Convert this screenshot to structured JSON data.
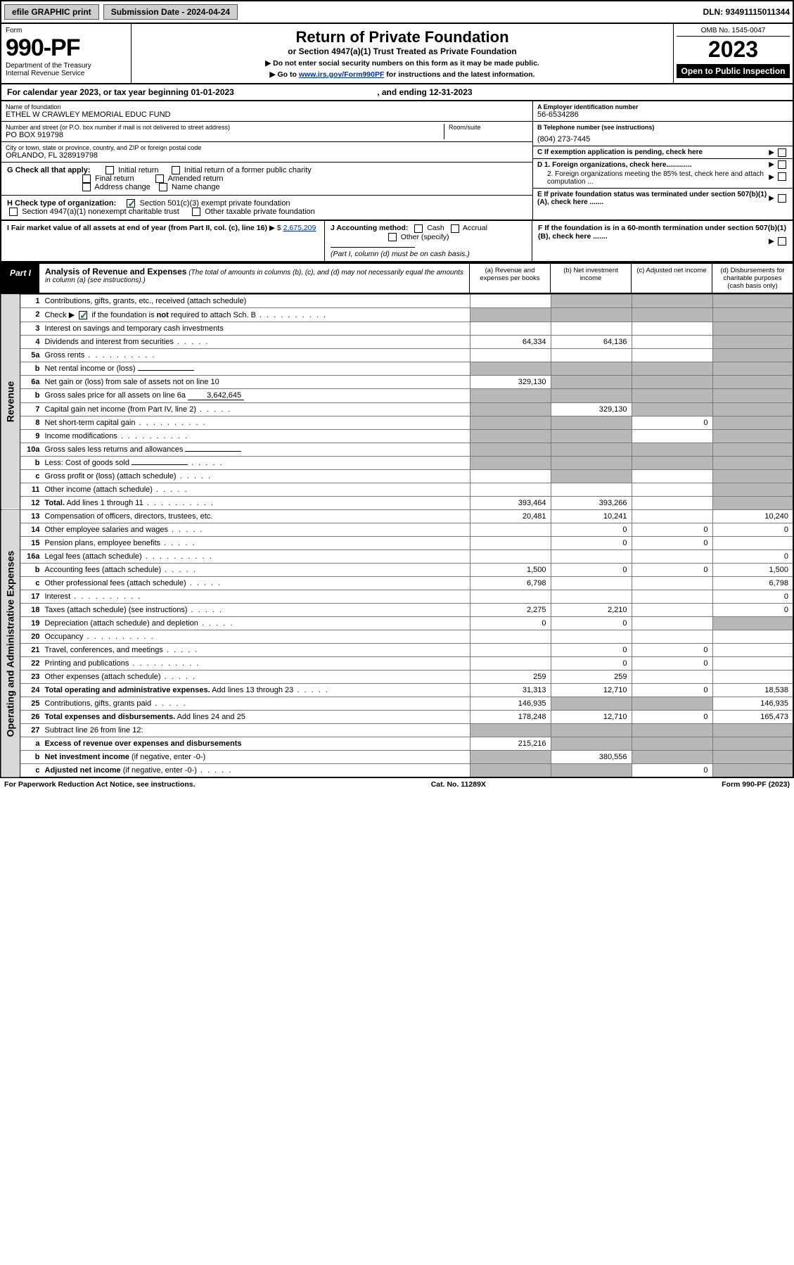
{
  "top_bar": {
    "efile": "efile GRAPHIC print",
    "submission": "Submission Date - 2024-04-24",
    "dln": "DLN: 93491115011344"
  },
  "header": {
    "form_label": "Form",
    "form_no": "990-PF",
    "dept": "Department of the Treasury",
    "irs": "Internal Revenue Service",
    "title": "Return of Private Foundation",
    "subtitle": "or Section 4947(a)(1) Trust Treated as Private Foundation",
    "note1": "▶ Do not enter social security numbers on this form as it may be made public.",
    "note2_pre": "▶ Go to ",
    "note2_link": "www.irs.gov/Form990PF",
    "note2_post": " for instructions and the latest information.",
    "omb": "OMB No. 1545-0047",
    "year": "2023",
    "inspection": "Open to Public Inspection"
  },
  "calendar": {
    "line_pre": "For calendar year 2023, or tax year beginning ",
    "begin": "01-01-2023",
    "mid": ", and ending ",
    "end": "12-31-2023"
  },
  "foundation": {
    "name_lbl": "Name of foundation",
    "name": "ETHEL W CRAWLEY MEMORIAL EDUC FUND",
    "addr_lbl": "Number and street (or P.O. box number if mail is not delivered to street address)",
    "addr": "PO BOX 919798",
    "room_lbl": "Room/suite",
    "city_lbl": "City or town, state or province, country, and ZIP or foreign postal code",
    "city": "ORLANDO, FL  328919798",
    "ein_lbl": "A Employer identification number",
    "ein": "56-6534286",
    "tel_lbl": "B Telephone number (see instructions)",
    "tel": "(804) 273-7445",
    "c_lbl": "C If exemption application is pending, check here",
    "d1": "D 1. Foreign organizations, check here.............",
    "d2": "2. Foreign organizations meeting the 85% test, check here and attach computation ...",
    "e_lbl": "E  If private foundation status was terminated under section 507(b)(1)(A), check here .......",
    "f_lbl": "F  If the foundation is in a 60-month termination under section 507(b)(1)(B), check here ......."
  },
  "checks": {
    "g_lbl": "G Check all that apply:",
    "g_items": [
      "Initial return",
      "Initial return of a former public charity",
      "Final return",
      "Amended return",
      "Address change",
      "Name change"
    ],
    "h_lbl": "H Check type of organization:",
    "h1": "Section 501(c)(3) exempt private foundation",
    "h2": "Section 4947(a)(1) nonexempt charitable trust",
    "h3": "Other taxable private foundation",
    "i_lbl": "I Fair market value of all assets at end of year (from Part II, col. (c), line 16)",
    "i_val": "2,675,209",
    "j_lbl": "J Accounting method:",
    "j_items": [
      "Cash",
      "Accrual"
    ],
    "j_other": "Other (specify)",
    "j_note": "(Part I, column (d) must be on cash basis.)"
  },
  "part1": {
    "tag": "Part I",
    "title": "Analysis of Revenue and Expenses",
    "title_note": " (The total of amounts in columns (b), (c), and (d) may not necessarily equal the amounts in column (a) (see instructions).)",
    "cols": {
      "a": "(a)   Revenue and expenses per books",
      "b": "(b)   Net investment income",
      "c": "(c)   Adjusted net income",
      "d": "(d)   Disbursements for charitable purposes (cash basis only)"
    }
  },
  "side_labels": {
    "rev": "Revenue",
    "ops": "Operating and Administrative Expenses"
  },
  "lines": [
    {
      "n": "1",
      "d": "Contributions, gifts, grants, etc., received (attach schedule)",
      "a": "",
      "b_grey": true,
      "c_grey": true,
      "d_grey": true
    },
    {
      "n": "2",
      "d_html": "Check ▶ <span class='cbx checked'></span> if the foundation is <b>not</b> required to attach Sch. B",
      "dots": true,
      "a_grey": true,
      "b_grey": true,
      "c_grey": true,
      "d_grey": true
    },
    {
      "n": "3",
      "d": "Interest on savings and temporary cash investments",
      "a": "",
      "b": "",
      "c": "",
      "d_grey": true
    },
    {
      "n": "4",
      "d": "Dividends and interest from securities",
      "dots": "short",
      "a": "64,334",
      "b": "64,136",
      "c": "",
      "d_grey": true
    },
    {
      "n": "5a",
      "d": "Gross rents",
      "dots": true,
      "a": "",
      "b": "",
      "c": "",
      "d_grey": true
    },
    {
      "n": "b",
      "d": "Net rental income or (loss)",
      "inline": "",
      "a_grey": true,
      "b_grey": true,
      "c_grey": true,
      "d_grey": true
    },
    {
      "n": "6a",
      "d": "Net gain or (loss) from sale of assets not on line 10",
      "a": "329,130",
      "b_grey": true,
      "c_grey": true,
      "d_grey": true
    },
    {
      "n": "b",
      "d": "Gross sales price for all assets on line 6a",
      "inline": "3,642,645",
      "a_grey": true,
      "b_grey": true,
      "c_grey": true,
      "d_grey": true
    },
    {
      "n": "7",
      "d": "Capital gain net income (from Part IV, line 2)",
      "dots": "short",
      "a_grey": true,
      "b": "329,130",
      "c_grey": true,
      "d_grey": true
    },
    {
      "n": "8",
      "d": "Net short-term capital gain",
      "dots": true,
      "a_grey": true,
      "b_grey": true,
      "c": "0",
      "d_grey": true
    },
    {
      "n": "9",
      "d": "Income modifications",
      "dots": true,
      "a_grey": true,
      "b_grey": true,
      "c": "",
      "d_grey": true
    },
    {
      "n": "10a",
      "d": "Gross sales less returns and allowances",
      "inline": "",
      "a_grey": true,
      "b_grey": true,
      "c_grey": true,
      "d_grey": true
    },
    {
      "n": "b",
      "d": "Less: Cost of goods sold",
      "dots": "short",
      "inline": "",
      "a_grey": true,
      "b_grey": true,
      "c_grey": true,
      "d_grey": true
    },
    {
      "n": "c",
      "d": "Gross profit or (loss) (attach schedule)",
      "dots": "short",
      "a": "",
      "b_grey": true,
      "c": "",
      "d_grey": true
    },
    {
      "n": "11",
      "d": "Other income (attach schedule)",
      "dots": "short",
      "a": "",
      "b": "",
      "c": "",
      "d_grey": true
    },
    {
      "n": "12",
      "d": "<b>Total.</b> Add lines 1 through 11",
      "dots": true,
      "a": "393,464",
      "b": "393,266",
      "c": "",
      "d_grey": true,
      "bold": true
    },
    {
      "n": "13",
      "d": "Compensation of officers, directors, trustees, etc.",
      "a": "20,481",
      "b": "10,241",
      "c": "",
      "dd": "10,240"
    },
    {
      "n": "14",
      "d": "Other employee salaries and wages",
      "dots": "short",
      "a": "",
      "b": "0",
      "c": "0",
      "dd": "0"
    },
    {
      "n": "15",
      "d": "Pension plans, employee benefits",
      "dots": "short",
      "a": "",
      "b": "0",
      "c": "0",
      "dd": ""
    },
    {
      "n": "16a",
      "d": "Legal fees (attach schedule)",
      "dots": true,
      "a": "",
      "b": "",
      "c": "",
      "dd": "0"
    },
    {
      "n": "b",
      "d": "Accounting fees (attach schedule)",
      "dots": "short",
      "a": "1,500",
      "b": "0",
      "c": "0",
      "dd": "1,500"
    },
    {
      "n": "c",
      "d": "Other professional fees (attach schedule)",
      "dots": "short",
      "a": "6,798",
      "b": "",
      "c": "",
      "dd": "6,798"
    },
    {
      "n": "17",
      "d": "Interest",
      "dots": true,
      "a": "",
      "b": "",
      "c": "",
      "dd": "0"
    },
    {
      "n": "18",
      "d": "Taxes (attach schedule) (see instructions)",
      "dots": "short",
      "a": "2,275",
      "b": "2,210",
      "c": "",
      "dd": "0"
    },
    {
      "n": "19",
      "d": "Depreciation (attach schedule) and depletion",
      "dots": "short",
      "a": "0",
      "b": "0",
      "c": "",
      "d_grey": true
    },
    {
      "n": "20",
      "d": "Occupancy",
      "dots": true,
      "a": "",
      "b": "",
      "c": "",
      "dd": ""
    },
    {
      "n": "21",
      "d": "Travel, conferences, and meetings",
      "dots": "short",
      "a": "",
      "b": "0",
      "c": "0",
      "dd": ""
    },
    {
      "n": "22",
      "d": "Printing and publications",
      "dots": true,
      "a": "",
      "b": "0",
      "c": "0",
      "dd": ""
    },
    {
      "n": "23",
      "d": "Other expenses (attach schedule)",
      "dots": "short",
      "a": "259",
      "b": "259",
      "c": "",
      "dd": ""
    },
    {
      "n": "24",
      "d": "<b>Total operating and administrative expenses.</b> Add lines 13 through 23",
      "dots": "short",
      "a": "31,313",
      "b": "12,710",
      "c": "0",
      "dd": "18,538"
    },
    {
      "n": "25",
      "d": "Contributions, gifts, grants paid",
      "dots": "short",
      "a": "146,935",
      "b_grey": true,
      "c_grey": true,
      "dd": "146,935"
    },
    {
      "n": "26",
      "d": "<b>Total expenses and disbursements.</b> Add lines 24 and 25",
      "a": "178,248",
      "b": "12,710",
      "c": "0",
      "dd": "165,473"
    },
    {
      "n": "27",
      "d": "Subtract line 26 from line 12:",
      "a_grey": true,
      "b_grey": true,
      "c_grey": true,
      "d_grey": true
    },
    {
      "n": "a",
      "d": "<b>Excess of revenue over expenses and disbursements</b>",
      "a": "215,216",
      "b_grey": true,
      "c_grey": true,
      "d_grey": true
    },
    {
      "n": "b",
      "d": "<b>Net investment income</b> (if negative, enter -0-)",
      "a_grey": true,
      "b": "380,556",
      "c_grey": true,
      "d_grey": true
    },
    {
      "n": "c",
      "d": "<b>Adjusted net income</b> (if negative, enter -0-)",
      "dots": "short",
      "a_grey": true,
      "b_grey": true,
      "c": "0",
      "d_grey": true
    }
  ],
  "footer": {
    "left": "For Paperwork Reduction Act Notice, see instructions.",
    "mid": "Cat. No. 11289X",
    "right": "Form 990-PF (2023)"
  },
  "colors": {
    "link": "#0030b0",
    "check": "#0a7a2a",
    "grey_side": "#d9d9d9",
    "grey_cell": "#b8b8b8",
    "btn_bg": "#cfcfcf"
  }
}
